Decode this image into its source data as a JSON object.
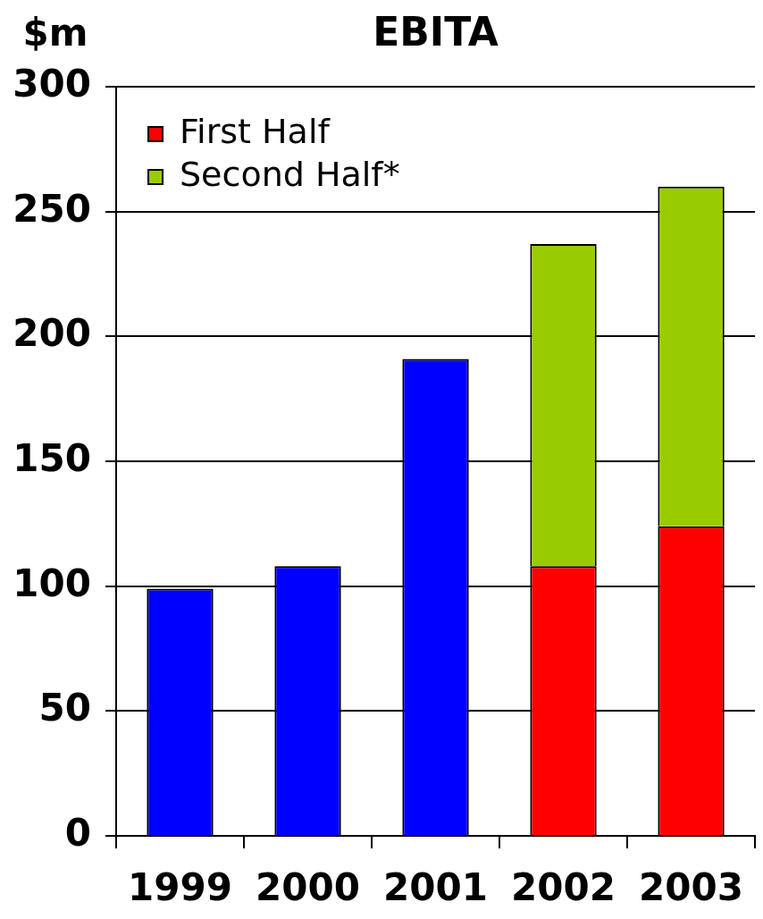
{
  "chart_data": {
    "type": "bar",
    "title": "EBITA",
    "ylabel": "$m",
    "categories": [
      "1999",
      "2000",
      "2001",
      "2002",
      "2003"
    ],
    "series": [
      {
        "color": "#0000ff",
        "values": [
          99,
          108,
          191,
          null,
          null
        ]
      },
      {
        "name": "First Half",
        "color": "#ff0000",
        "values": [
          null,
          null,
          null,
          108,
          124
        ]
      },
      {
        "name": "Second Half*",
        "color": "#99cc00",
        "values": [
          null,
          null,
          null,
          129,
          136
        ]
      }
    ],
    "stacked": true,
    "ylim": [
      0,
      300
    ],
    "yticks": [
      0,
      50,
      100,
      150,
      200,
      250,
      300
    ],
    "grid": "y",
    "legend": "top left"
  }
}
